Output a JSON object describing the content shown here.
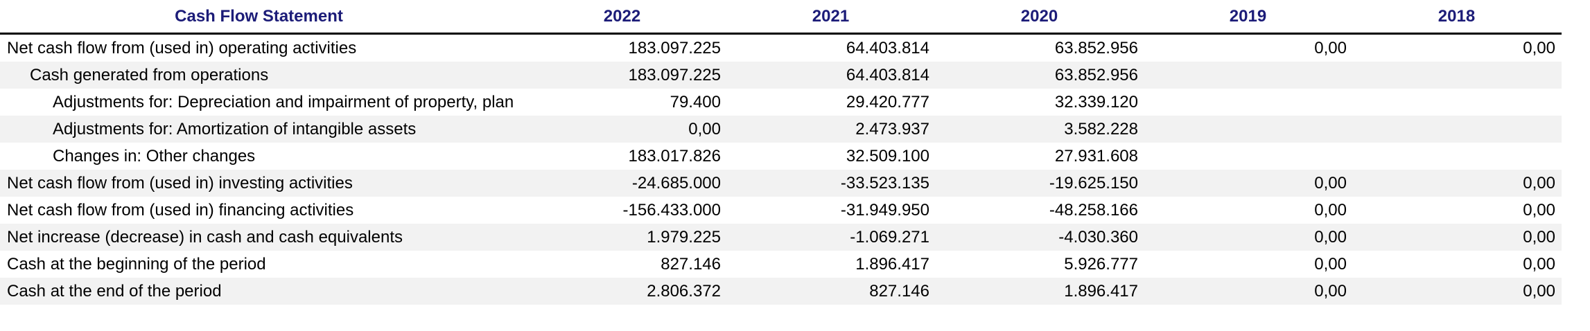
{
  "table": {
    "title": "Cash Flow Statement",
    "columns": [
      "2022",
      "2021",
      "2020",
      "2019",
      "2018"
    ],
    "rows": [
      {
        "label": "Net cash flow from (used in) operating activities",
        "indent": "0",
        "values": [
          "183.097.225",
          "64.403.814",
          "63.852.956",
          "0,00",
          "0,00"
        ]
      },
      {
        "label": "Cash generated from operations",
        "indent": "1",
        "values": [
          "183.097.225",
          "64.403.814",
          "63.852.956",
          "",
          ""
        ]
      },
      {
        "label": "Adjustments for: Depreciation and impairment of property, plan",
        "indent": "2",
        "values": [
          "79.400",
          "29.420.777",
          "32.339.120",
          "",
          ""
        ]
      },
      {
        "label": "Adjustments for: Amortization of intangible assets",
        "indent": "2",
        "values": [
          "0,00",
          "2.473.937",
          "3.582.228",
          "",
          ""
        ]
      },
      {
        "label": "Changes in: Other changes",
        "indent": "2",
        "values": [
          "183.017.826",
          "32.509.100",
          "27.931.608",
          "",
          ""
        ]
      },
      {
        "label": "Net cash flow from (used in) investing activities",
        "indent": "0",
        "values": [
          "-24.685.000",
          "-33.523.135",
          "-19.625.150",
          "0,00",
          "0,00"
        ]
      },
      {
        "label": "Net cash flow from (used in) financing activities",
        "indent": "0",
        "values": [
          "-156.433.000",
          "-31.949.950",
          "-48.258.166",
          "0,00",
          "0,00"
        ]
      },
      {
        "label": "Net increase (decrease) in cash and cash equivalents",
        "indent": "0",
        "values": [
          "1.979.225",
          "-1.069.271",
          "-4.030.360",
          "0,00",
          "0,00"
        ]
      },
      {
        "label": "Cash at the beginning of the period",
        "indent": "0",
        "values": [
          "827.146",
          "1.896.417",
          "5.926.777",
          "0,00",
          "0,00"
        ]
      },
      {
        "label": "Cash at the end of the period",
        "indent": "0",
        "values": [
          "2.806.372",
          "827.146",
          "1.896.417",
          "0,00",
          "0,00"
        ]
      }
    ],
    "colors": {
      "header_text": "#1c1c78",
      "stripe": "#f2f2f2",
      "header_rule": "#000000"
    }
  }
}
